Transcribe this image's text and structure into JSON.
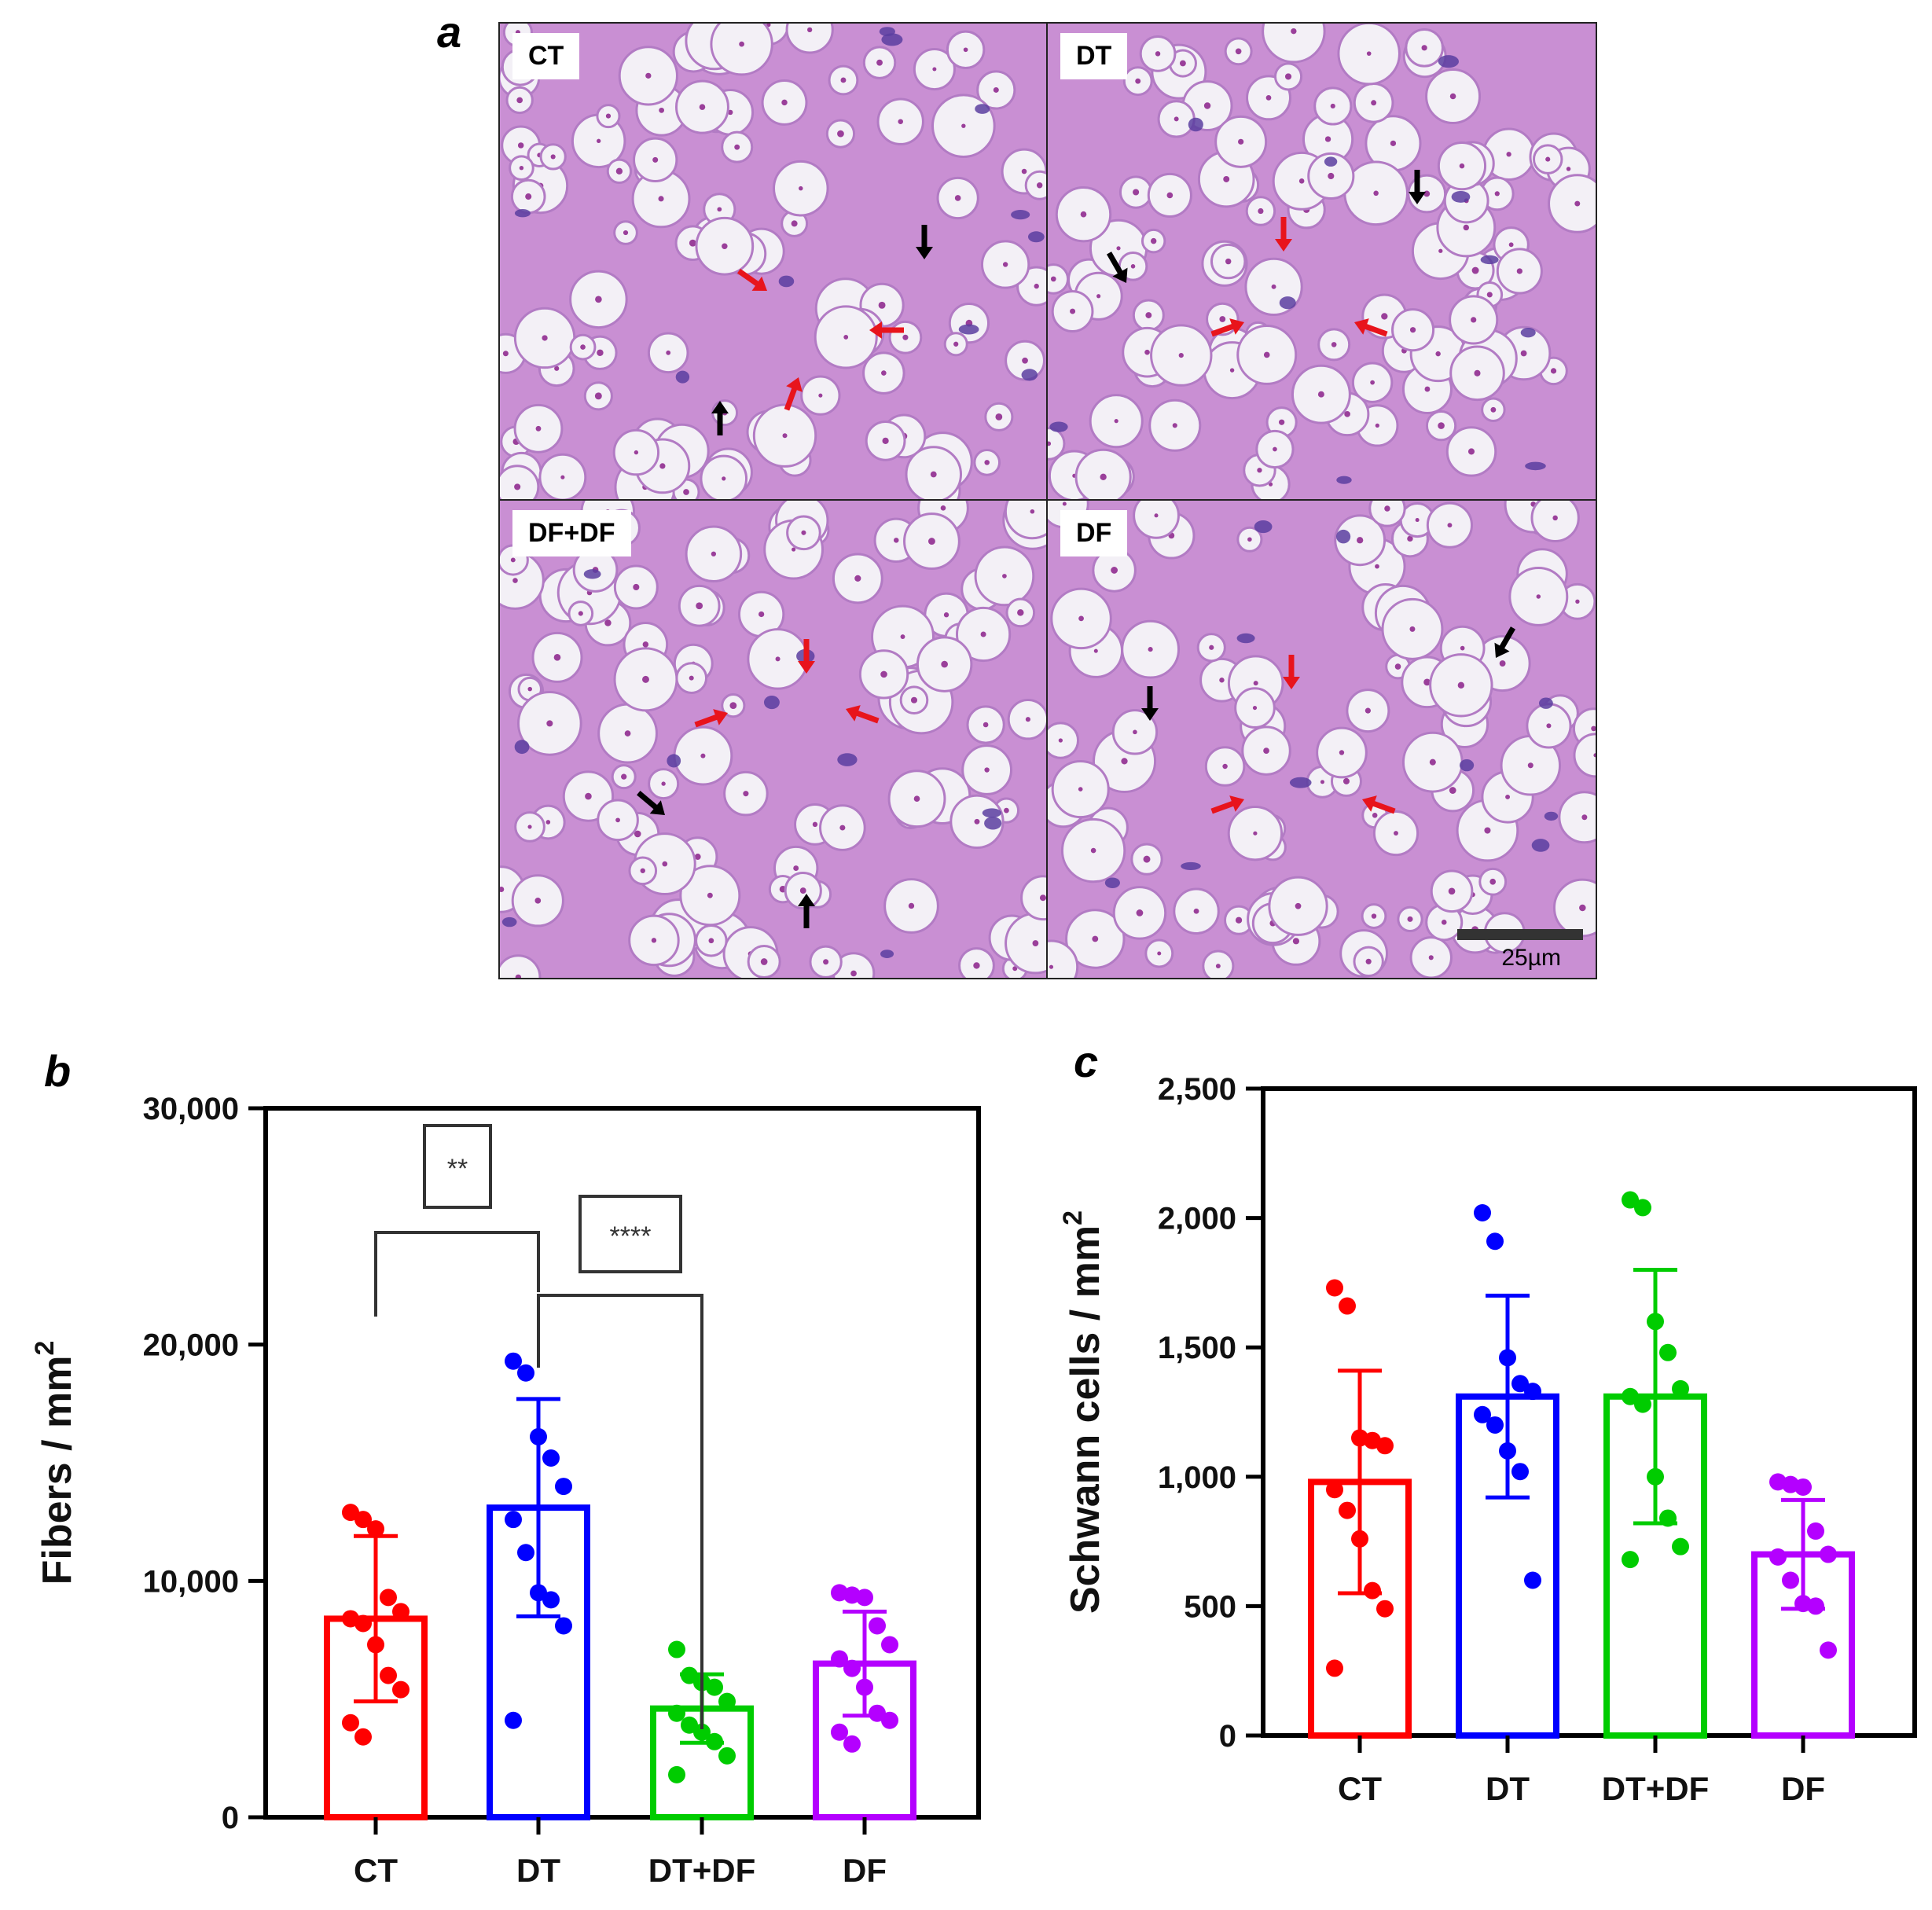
{
  "figure": {
    "panel_labels": {
      "a": "a",
      "b": "b",
      "c": "c"
    }
  },
  "micrographs": {
    "tiles": [
      {
        "label": "CT",
        "arrows": {
          "red": 3,
          "black": 2
        }
      },
      {
        "label": "DT",
        "arrows": {
          "red": 3,
          "black": 2
        }
      },
      {
        "label": "DF+DF",
        "arrows": {
          "red": 3,
          "black": 2
        }
      },
      {
        "label": "DF",
        "arrows": {
          "red": 3,
          "black": 2
        }
      }
    ],
    "scale_bar_label": "25µm",
    "colors": {
      "stain_background": "#c98fd3",
      "fiber_lumen": "#f3f0f6",
      "nucleus": "#5a3ea0",
      "red_arrow": "#e8141c",
      "black_arrow": "#000000"
    }
  },
  "chart_data": [
    {
      "type": "bar",
      "panel": "b",
      "title": "",
      "xlabel": "",
      "ylabel": "Fibers / mm",
      "ylabel_superscript": "2",
      "categories": [
        "CT",
        "DT",
        "DT+DF",
        "DF"
      ],
      "ylim": [
        0,
        30000
      ],
      "yticks": [
        0,
        10000,
        20000,
        30000
      ],
      "ytick_labels": [
        "0",
        "10,000",
        "20,000",
        "30,000"
      ],
      "values": [
        8400,
        13100,
        4600,
        6500
      ],
      "sd": [
        3500,
        4600,
        1450,
        2200
      ],
      "points": [
        [
          12900,
          12600,
          12200,
          9300,
          8700,
          8400,
          8200,
          7300,
          6000,
          5400,
          4000,
          3400
        ],
        [
          19300,
          18800,
          16100,
          15200,
          14000,
          12600,
          11200,
          9500,
          9200,
          8100,
          4100
        ],
        [
          7100,
          6000,
          5700,
          5500,
          4900,
          4400,
          3900,
          3600,
          3200,
          2600,
          1800
        ],
        [
          9500,
          9400,
          9300,
          8100,
          7300,
          6700,
          6300,
          5500,
          4400,
          4100,
          3600,
          3100
        ]
      ],
      "colors": [
        "#ff0000",
        "#0000ff",
        "#00cc00",
        "#b400ff"
      ],
      "grid": false,
      "significance": [
        {
          "label": "**",
          "from": "CT",
          "to": "DT"
        },
        {
          "label": "****",
          "from": "DT",
          "to": "DT+DF"
        }
      ]
    },
    {
      "type": "bar",
      "panel": "c",
      "title": "",
      "xlabel": "",
      "ylabel": "Schwann cells / mm",
      "ylabel_superscript": "2",
      "categories": [
        "CT",
        "DT",
        "DT+DF",
        "DF"
      ],
      "ylim": [
        0,
        2500
      ],
      "yticks": [
        0,
        500,
        1000,
        1500,
        2000,
        2500
      ],
      "ytick_labels": [
        "0",
        "500",
        "1,000",
        "1,500",
        "2,000",
        "2,500"
      ],
      "values": [
        980,
        1310,
        1310,
        700
      ],
      "sd": [
        430,
        390,
        490,
        210
      ],
      "points": [
        [
          1730,
          1660,
          1150,
          1140,
          1120,
          950,
          870,
          760,
          560,
          490,
          260
        ],
        [
          2020,
          1910,
          1460,
          1360,
          1330,
          1240,
          1200,
          1100,
          1020,
          600
        ],
        [
          2070,
          2040,
          1600,
          1480,
          1340,
          1310,
          1280,
          1000,
          840,
          730,
          680
        ],
        [
          980,
          970,
          960,
          790,
          700,
          690,
          600,
          510,
          500,
          330
        ]
      ],
      "colors": [
        "#ff0000",
        "#0000ff",
        "#00cc00",
        "#b400ff"
      ],
      "grid": false
    }
  ]
}
